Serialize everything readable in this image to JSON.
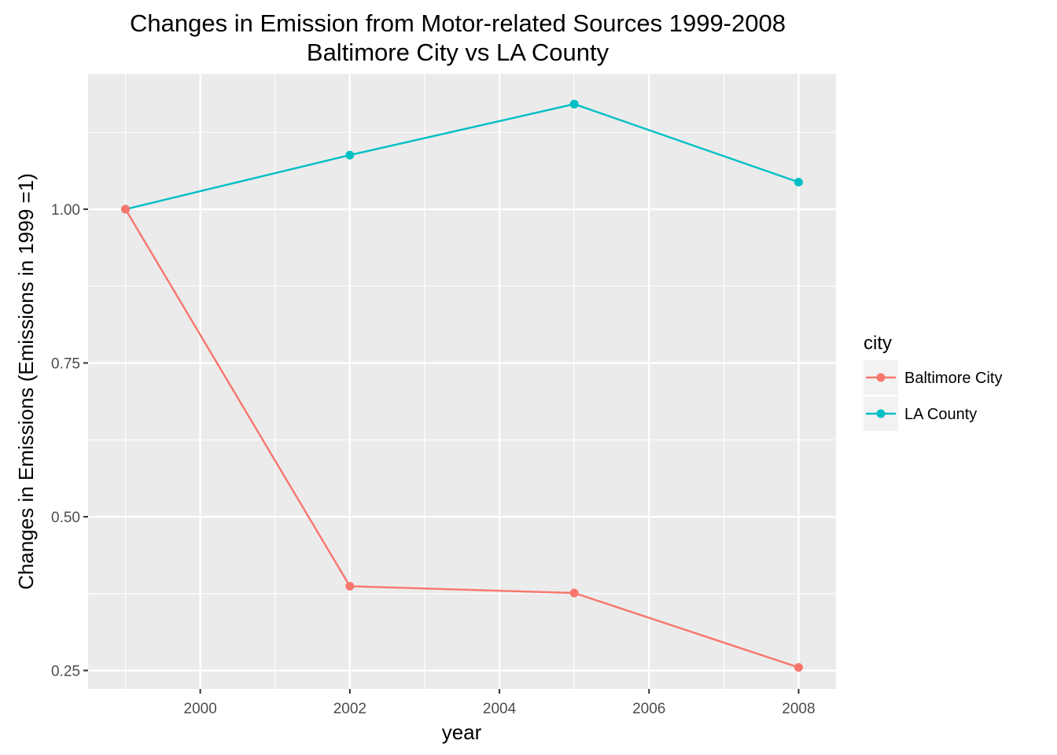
{
  "chart_data": {
    "type": "line",
    "title": "Changes in Emission from Motor-related Sources 1999-2008",
    "subtitle": "Baltimore City vs LA County",
    "xlabel": "year",
    "ylabel": "Changes in Emissions (Emissions in 1999 =1)",
    "x": [
      1999,
      2002,
      2005,
      2008
    ],
    "xlim": [
      1998.5,
      2008.5
    ],
    "ylim": [
      0.22,
      1.22
    ],
    "x_ticks": [
      2000,
      2002,
      2004,
      2006,
      2008
    ],
    "x_tick_labels": [
      "2000",
      "2002",
      "2004",
      "2006",
      "2008"
    ],
    "y_ticks": [
      0.25,
      0.5,
      0.75,
      1.0
    ],
    "y_tick_labels": [
      "0.25",
      "0.50",
      "0.75",
      "1.00"
    ],
    "grid": true,
    "legend": {
      "title": "city",
      "placement": "right"
    },
    "series": [
      {
        "name": "Baltimore City",
        "color": "#F8766D",
        "values": [
          1.0,
          0.387,
          0.376,
          0.255
        ]
      },
      {
        "name": "LA County",
        "color": "#00BFC4",
        "values": [
          1.0,
          1.088,
          1.171,
          1.044
        ]
      }
    ]
  }
}
